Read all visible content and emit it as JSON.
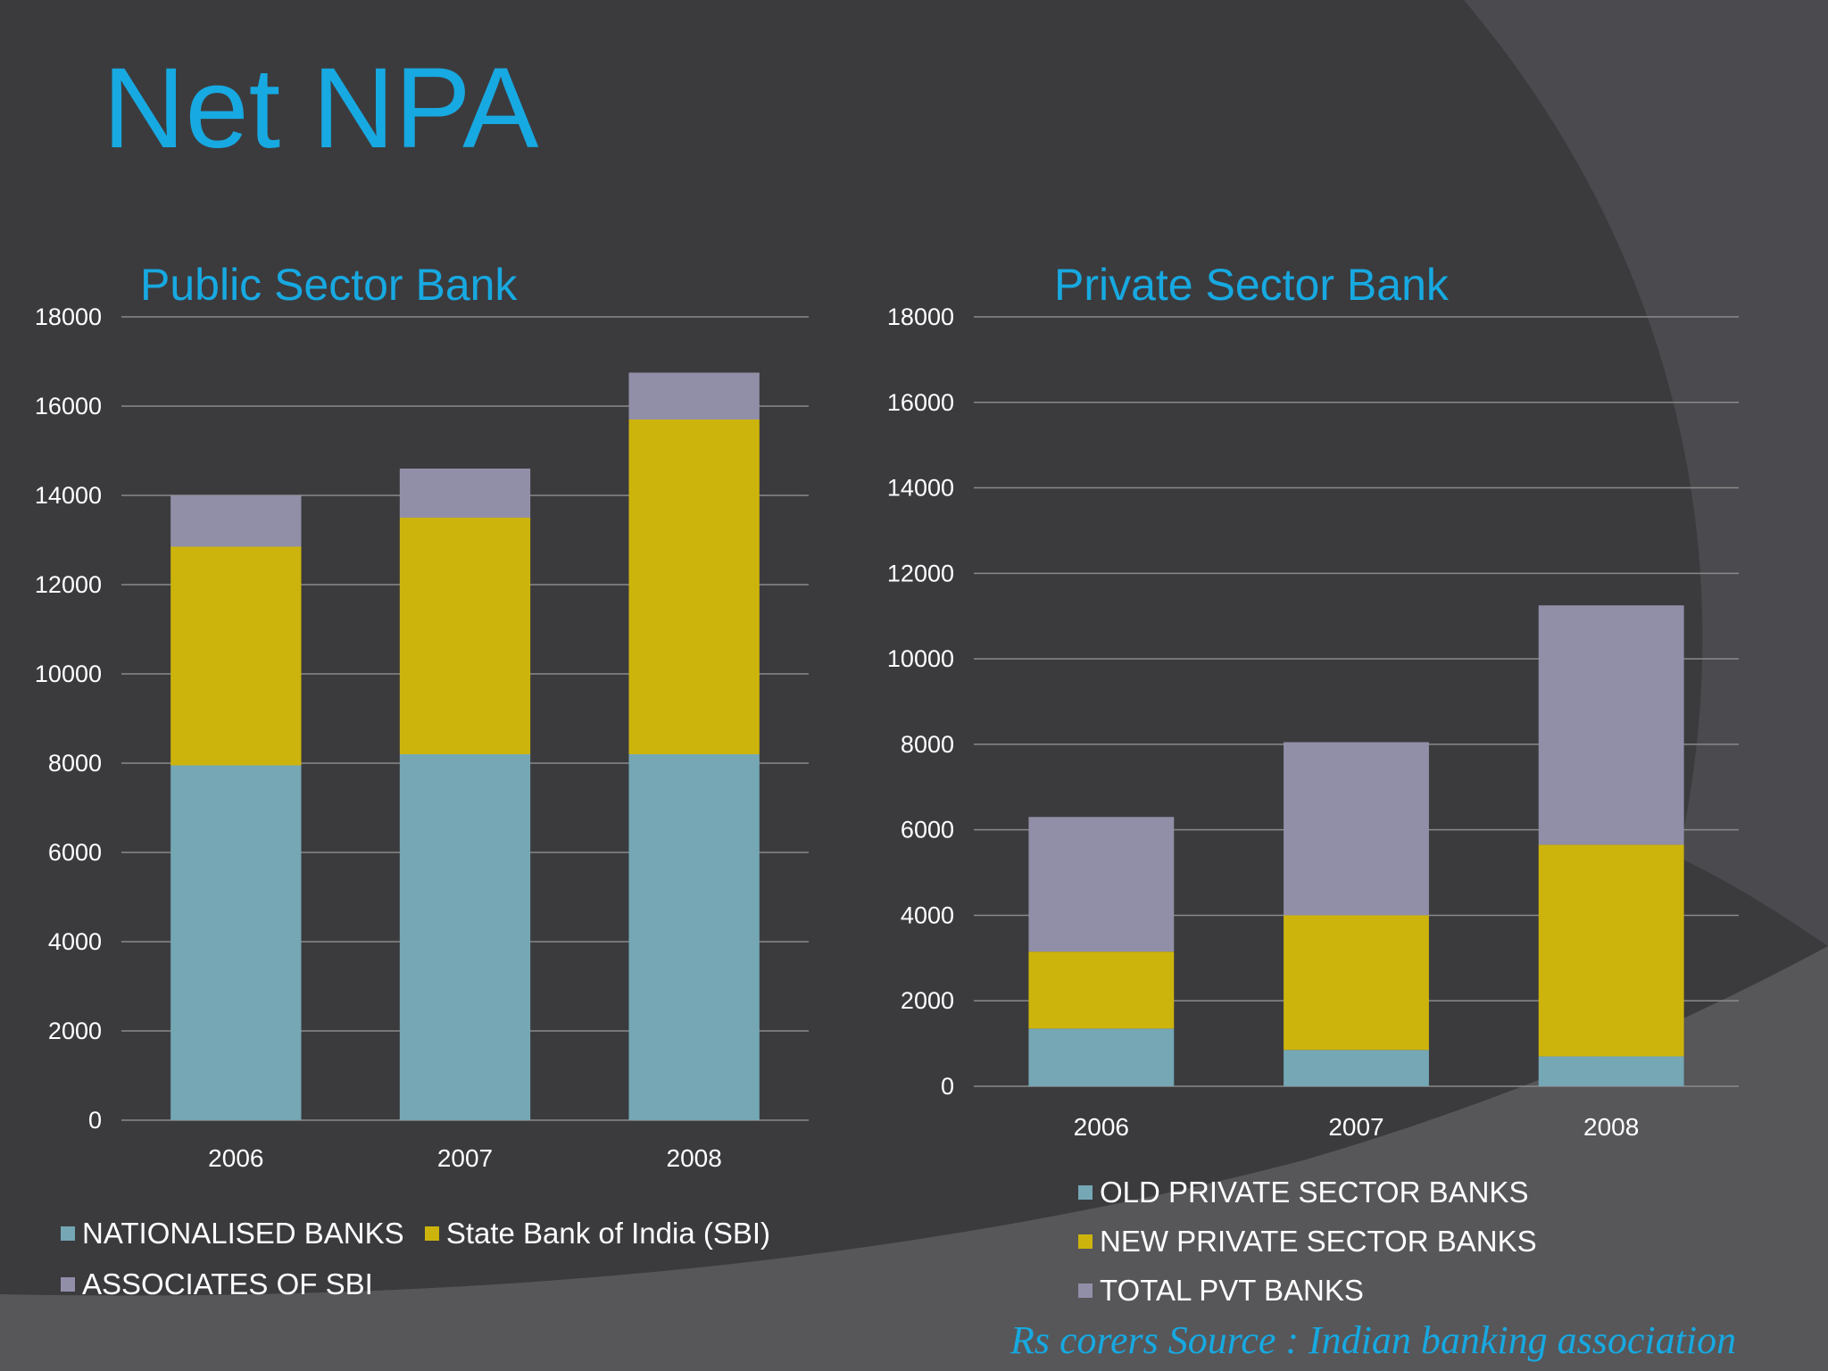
{
  "slide": {
    "title": "Net NPA",
    "source_note": "Rs corers Source : Indian banking association"
  },
  "colors": {
    "background": "#3b3b3e",
    "title": "#17a9e1",
    "series_1": "#75a7b5",
    "series_2": "#cdb40c",
    "series_3": "#918fa8",
    "grid": "#8a8a8a",
    "axis_text": "#ffffff"
  },
  "chart_data": [
    {
      "type": "bar",
      "stacked": true,
      "title": "Public Sector Bank",
      "categories": [
        "2006",
        "2007",
        "2008"
      ],
      "series": [
        {
          "name": "NATIONALISED BANKS",
          "values": [
            7950,
            8200,
            8200
          ]
        },
        {
          "name": "State Bank of India (SBI)",
          "values": [
            4900,
            5300,
            7500
          ]
        },
        {
          "name": "ASSOCIATES OF SBI",
          "values": [
            1150,
            1100,
            1050
          ]
        }
      ],
      "ylim": [
        0,
        18000
      ],
      "yticks": [
        "0",
        "2000",
        "4000",
        "6000",
        "8000",
        "10000",
        "12000",
        "14000",
        "16000",
        "18000"
      ],
      "grid": true,
      "legend": "bottom"
    },
    {
      "type": "bar",
      "stacked": true,
      "title": "Private Sector Bank",
      "categories": [
        "2006",
        "2007",
        "2008"
      ],
      "series": [
        {
          "name": "OLD PRIVATE SECTOR BANKS",
          "values": [
            1350,
            850,
            700
          ]
        },
        {
          "name": "NEW PRIVATE SECTOR BANKS",
          "values": [
            1800,
            3150,
            4950
          ]
        },
        {
          "name": "TOTAL PVT BANKS",
          "values": [
            3150,
            4050,
            5600
          ]
        }
      ],
      "ylim": [
        0,
        18000
      ],
      "yticks": [
        "0",
        "2000",
        "4000",
        "6000",
        "8000",
        "10000",
        "12000",
        "14000",
        "16000",
        "18000"
      ],
      "grid": true,
      "legend": "bottom"
    }
  ]
}
